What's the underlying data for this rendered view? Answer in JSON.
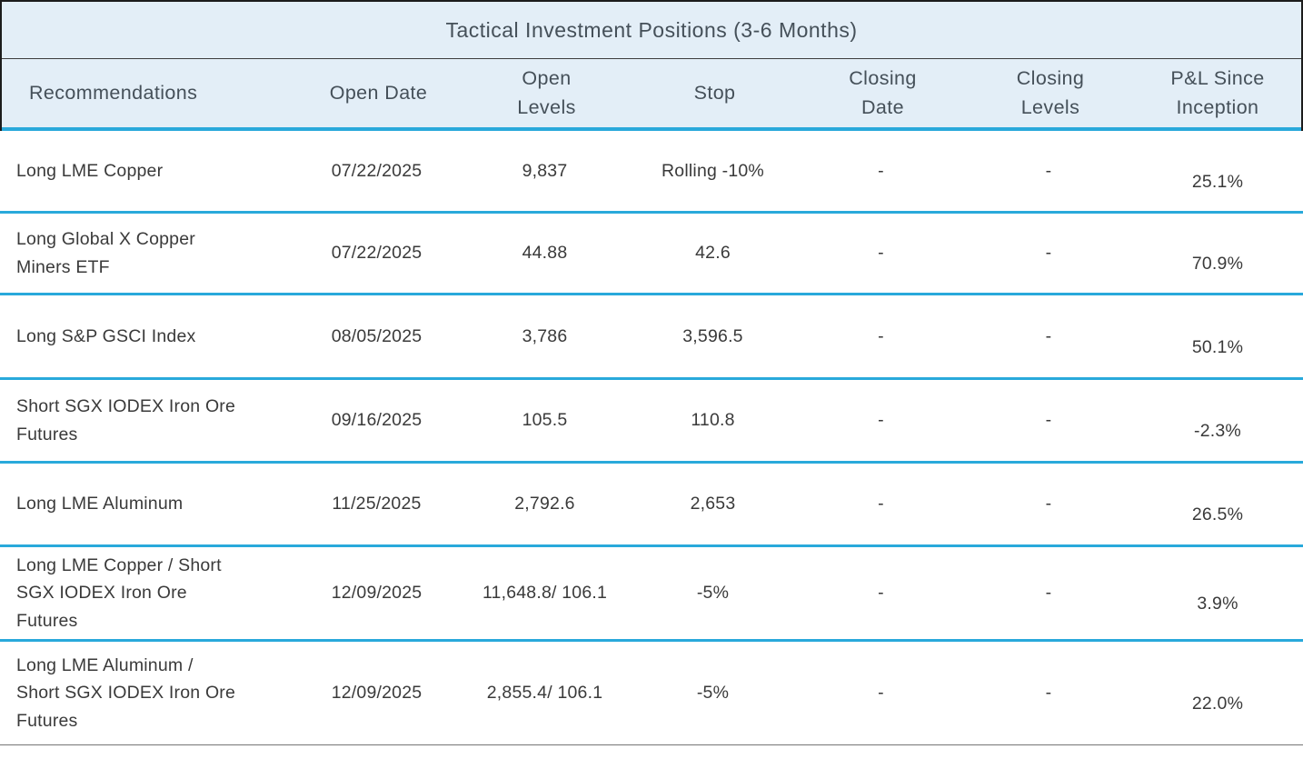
{
  "chart_data": {
    "type": "table",
    "title": "Tactical Investment Positions (3-6 Months)",
    "columns": [
      "Recommendations",
      "Open Date",
      "Open\nLevels",
      "Stop",
      "Closing\nDate",
      "Closing\nLevels",
      "P&L Since\nInception"
    ],
    "rows": [
      [
        "Long LME Copper",
        "07/22/2025",
        "9,837",
        "Rolling -10%",
        "-",
        "-",
        "25.1%"
      ],
      [
        "Long Global X Copper\nMiners ETF",
        "07/22/2025",
        "44.88",
        "42.6",
        "-",
        "-",
        "70.9%"
      ],
      [
        "Long S&P GSCI Index",
        "08/05/2025",
        "3,786",
        "3,596.5",
        "-",
        "-",
        "50.1%"
      ],
      [
        "Short SGX IODEX Iron Ore\nFutures",
        "09/16/2025",
        "105.5",
        "110.8",
        "-",
        "-",
        "-2.3%"
      ],
      [
        "Long LME Aluminum",
        "11/25/2025",
        "2,792.6",
        "2,653",
        "-",
        "-",
        "26.5%"
      ],
      [
        "Long LME Copper / Short\nSGX IODEX Iron Ore\nFutures",
        "12/09/2025",
        "11,648.8/ 106.1",
        "-5%",
        "-",
        "-",
        "3.9%"
      ],
      [
        "Long LME Aluminum /\nShort SGX IODEX Iron Ore\nFutures",
        "12/09/2025",
        "2,855.4/ 106.1",
        "-5%",
        "-",
        "-",
        "22.0%"
      ]
    ],
    "colors": {
      "header_background": "#e3eef7",
      "row_separator_cyan": "#29a9db",
      "outer_border_dark": "#1c1c1c",
      "bottom_rule_gray": "#757575",
      "header_text": "#455059",
      "body_text": "#3a3a3a"
    },
    "layout_hints": {
      "legend": "none",
      "grid": "horizontal separators only",
      "first_column_align": "left",
      "other_columns_align": "center"
    }
  }
}
